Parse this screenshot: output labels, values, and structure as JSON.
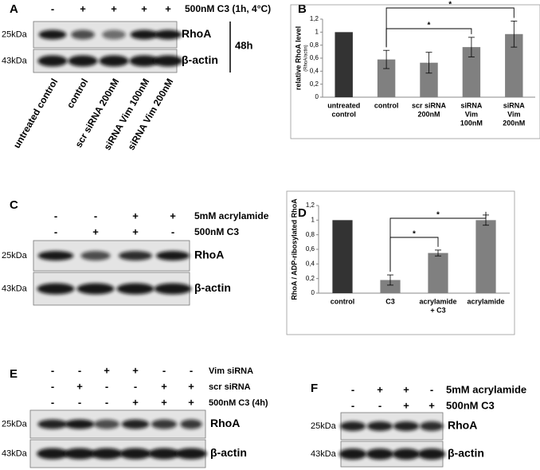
{
  "chart_data": [
    {
      "type": "bar",
      "panel": "B",
      "y_label": "relative RhoA level",
      "y_sublabel": "(RhoA/actin)",
      "categories": [
        [
          "untreated",
          "control"
        ],
        [
          "control"
        ],
        [
          "scr siRNA",
          "200nM"
        ],
        [
          "siRNA",
          "Vim",
          "100nM"
        ],
        [
          "siRNA",
          "Vim",
          "200nM"
        ]
      ],
      "series": [
        {
          "values": [
            1,
            0.58,
            0.53,
            0.77,
            0.97
          ],
          "errors": [
            0,
            0.14,
            0.16,
            0.15,
            0.2
          ],
          "colors": [
            "#333333",
            "#808080",
            "#808080",
            "#808080",
            "#808080"
          ]
        }
      ],
      "ylim": [
        0,
        1.2
      ],
      "yticks": [
        0,
        {
          "value": 0.2,
          "label": "0,2"
        },
        {
          "value": 0.4,
          "label": "0,4"
        },
        {
          "value": 0.6,
          "label": "0,6"
        },
        {
          "value": 0.8,
          "label": "0,8"
        },
        1,
        {
          "value": 1.2,
          "label": "1,2"
        }
      ],
      "annotations": [
        "*",
        "*"
      ]
    },
    {
      "type": "bar",
      "panel": "D",
      "y_label": "RhoA / ADP-ribosylated RhoA",
      "categories": [
        [
          "control"
        ],
        [
          "C3"
        ],
        [
          "acrylamide",
          "+ C3"
        ],
        [
          "acrylamide"
        ]
      ],
      "series": [
        {
          "values": [
            1,
            0.18,
            0.55,
            1.0
          ],
          "errors": [
            0,
            0.07,
            0.04,
            0.07
          ],
          "colors": [
            "#333333",
            "#808080",
            "#808080",
            "#808080"
          ]
        }
      ],
      "ylim": [
        0,
        1.2
      ],
      "yticks": [
        0,
        {
          "value": 0.2,
          "label": "0,2"
        },
        {
          "value": 0.4,
          "label": "0,4"
        },
        {
          "value": 0.6,
          "label": "0,6"
        },
        {
          "value": 0.8,
          "label": "0,8"
        },
        1,
        {
          "value": 1.2,
          "label": "1,2"
        }
      ],
      "annotations": [
        "*",
        "*"
      ]
    }
  ],
  "panels": {
    "A": {
      "label": "A",
      "treatments": [
        {
          "signs": [
            "-",
            "+",
            "+",
            "+",
            "+"
          ],
          "label": "500nM C3 (1h, 4°C)"
        }
      ],
      "markers": [
        "25kDa",
        "43kDa"
      ],
      "proteins": [
        "RhoA",
        "β-actin"
      ],
      "time": "48h",
      "lanes": [
        "untreated control",
        "control",
        "scr siRNA 200nM",
        "siRNA Vim 100nM",
        "siRNA Vim 200nM"
      ]
    },
    "C": {
      "label": "C",
      "treatments": [
        {
          "signs": [
            "-",
            "-",
            "+",
            "+"
          ],
          "label": "5mM acrylamide"
        },
        {
          "signs": [
            "-",
            "+",
            "+",
            "-"
          ],
          "label": "500nM C3"
        }
      ],
      "markers": [
        "25kDa",
        "43kDa"
      ],
      "proteins": [
        "RhoA",
        "β-actin"
      ]
    },
    "D": {
      "label": "D"
    },
    "B": {
      "label": "B"
    },
    "E": {
      "label": "E",
      "treatments": [
        {
          "signs": [
            "-",
            "-",
            "+",
            "+",
            "-",
            "-"
          ],
          "label": "Vim siRNA"
        },
        {
          "signs": [
            "-",
            "+",
            "-",
            "-",
            "+",
            "+"
          ],
          "label": "scr siRNA"
        },
        {
          "signs": [
            "-",
            "-",
            "-",
            "+",
            "+",
            "+"
          ],
          "label": "500nM C3 (4h)"
        }
      ],
      "markers": [
        "25kDa",
        "43kDa"
      ],
      "proteins": [
        "RhoA",
        "β-actin"
      ]
    },
    "F": {
      "label": "F",
      "treatments": [
        {
          "signs": [
            "-",
            "+",
            "+",
            "-"
          ],
          "label": "5mM acrylamide"
        },
        {
          "signs": [
            "-",
            "-",
            "+",
            "+"
          ],
          "label": "500nM C3"
        }
      ],
      "markers": [
        "25kDa",
        "43kDa"
      ],
      "proteins": [
        "RhoA",
        "β-actin"
      ]
    }
  }
}
